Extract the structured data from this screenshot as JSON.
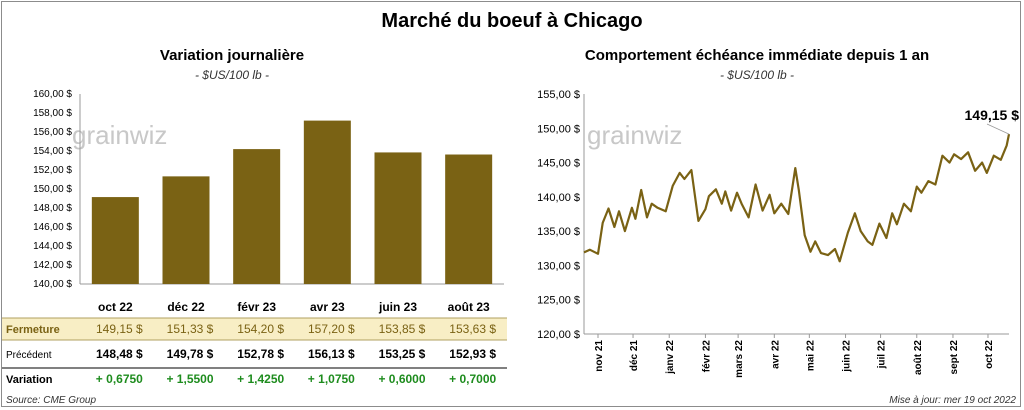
{
  "title": "Marché du boeuf à Chicago",
  "colors": {
    "bar": "#7a6214",
    "line": "#7a6214",
    "highlight_row": "#f8eec5",
    "positive": "#1e8c1e",
    "logo": "#c8c8c8"
  },
  "watermark": "grainwiz",
  "source": "Source: CME Group",
  "updated": "Mise à jour: mer 19 oct 2022",
  "chart_data": [
    {
      "type": "bar",
      "title": "Variation journalière",
      "unit": "- $US/100 lb -",
      "categories": [
        "oct 22",
        "déc 22",
        "févr 23",
        "avr 23",
        "juin 23",
        "août 23"
      ],
      "values": [
        149.15,
        151.33,
        154.2,
        157.2,
        153.85,
        153.63
      ],
      "ylim": [
        140,
        160
      ],
      "yticks": [
        "140,00 $",
        "142,00 $",
        "144,00 $",
        "146,00 $",
        "148,00 $",
        "150,00 $",
        "152,00 $",
        "154,00 $",
        "156,00 $",
        "158,00 $",
        "160,00 $"
      ],
      "grid": false,
      "table": {
        "rows": [
          {
            "label": "Fermeture",
            "values": [
              "149,15  $",
              "151,33  $",
              "154,20  $",
              "157,20  $",
              "153,85  $",
              "153,63  $"
            ]
          },
          {
            "label": "Précédent",
            "values": [
              "148,48  $",
              "149,78  $",
              "152,78  $",
              "156,13  $",
              "153,25  $",
              "152,93  $"
            ]
          },
          {
            "label": "Variation",
            "values": [
              "+ 0,6750",
              "+ 1,5500",
              "+ 1,4250",
              "+ 1,0750",
              "+ 0,6000",
              "+ 0,7000"
            ]
          }
        ]
      }
    },
    {
      "type": "line",
      "title": "Comportement  échéance immédiate depuis 1 an",
      "unit": "- $US/100 lb -",
      "ylim": [
        120,
        155
      ],
      "yticks": [
        "120,00 $",
        "125,00 $",
        "130,00 $",
        "135,00 $",
        "140,00 $",
        "145,00 $",
        "150,00 $",
        "155,00 $"
      ],
      "x_ticks": [
        "nov 21",
        "déc 21",
        "janv 22",
        "févr 22",
        "mars 22",
        "avr 22",
        "mai 22",
        "juin 22",
        "juil 22",
        "août 22",
        "sept 22",
        "oct 22"
      ],
      "last_value_label": "149,15 $",
      "grid": false,
      "x": [
        "2021-10-20",
        "2021-10-25",
        "2021-11-01",
        "2021-11-05",
        "2021-11-10",
        "2021-11-15",
        "2021-11-19",
        "2021-11-24",
        "2021-11-30",
        "2021-12-03",
        "2021-12-08",
        "2021-12-13",
        "2021-12-17",
        "2021-12-22",
        "2021-12-29",
        "2022-01-04",
        "2022-01-10",
        "2022-01-14",
        "2022-01-20",
        "2022-01-26",
        "2022-02-01",
        "2022-02-04",
        "2022-02-10",
        "2022-02-15",
        "2022-02-18",
        "2022-02-23",
        "2022-02-28",
        "2022-03-04",
        "2022-03-10",
        "2022-03-16",
        "2022-03-22",
        "2022-03-28",
        "2022-04-01",
        "2022-04-07",
        "2022-04-13",
        "2022-04-19",
        "2022-04-22",
        "2022-04-27",
        "2022-05-02",
        "2022-05-06",
        "2022-05-11",
        "2022-05-17",
        "2022-05-23",
        "2022-05-27",
        "2022-06-03",
        "2022-06-09",
        "2022-06-14",
        "2022-06-20",
        "2022-06-24",
        "2022-06-30",
        "2022-07-06",
        "2022-07-11",
        "2022-07-15",
        "2022-07-21",
        "2022-07-27",
        "2022-08-01",
        "2022-08-05",
        "2022-08-11",
        "2022-08-17",
        "2022-08-23",
        "2022-08-29",
        "2022-09-02",
        "2022-09-08",
        "2022-09-14",
        "2022-09-20",
        "2022-09-26",
        "2022-09-30",
        "2022-10-06",
        "2022-10-12",
        "2022-10-17",
        "2022-10-19"
      ],
      "values": [
        131.9,
        132.3,
        131.7,
        136.2,
        138.3,
        135.6,
        137.9,
        135.0,
        138.4,
        136.8,
        141.0,
        137.0,
        139.0,
        138.4,
        137.9,
        141.6,
        143.5,
        142.6,
        143.9,
        136.5,
        138.2,
        140.1,
        141.1,
        139.0,
        140.8,
        138.0,
        140.6,
        139.0,
        137.0,
        141.8,
        138.0,
        140.3,
        137.6,
        139.0,
        137.5,
        144.2,
        141.0,
        134.4,
        132.0,
        133.5,
        131.8,
        131.5,
        132.4,
        130.6,
        134.8,
        137.6,
        135.0,
        133.5,
        133.0,
        136.1,
        134.0,
        137.6,
        136.0,
        139.0,
        137.9,
        141.5,
        140.6,
        142.3,
        141.8,
        146.0,
        145.0,
        146.2,
        145.5,
        146.5,
        143.8,
        145.0,
        143.5,
        146.0,
        145.4,
        147.5,
        149.15
      ]
    }
  ]
}
